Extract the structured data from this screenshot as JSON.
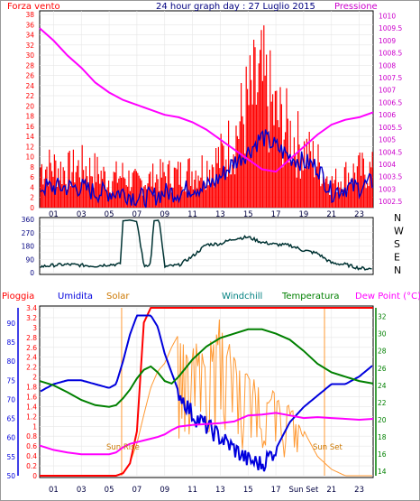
{
  "header": {
    "left_label": "Forza vento",
    "title": "24 hour graph day : 27 Luglio 2015",
    "right_label": "Pressione"
  },
  "colors": {
    "wind": "#ff0000",
    "gust": "#0000cc",
    "pressure": "#ff00ff",
    "direction": "#003333",
    "rain": "#ff0000",
    "humidity": "#0000dd",
    "solar": "#ff9933",
    "windchill": "#008080",
    "temperature": "#008000",
    "dewpoint": "#ff00ff",
    "axis_text": "#000080"
  },
  "chart_data": [
    {
      "type": "line",
      "name": "wind-pressure",
      "x_ticks": [
        "01",
        "03",
        "05",
        "07",
        "09",
        "11",
        "13",
        "15",
        "17",
        "19",
        "21",
        "23"
      ],
      "left_axis": {
        "label": "Forza vento",
        "ticks": [
          0,
          2,
          4,
          6,
          8,
          10,
          12,
          14,
          16,
          18,
          20,
          22,
          24,
          26,
          28,
          30,
          32,
          34,
          36,
          38
        ],
        "ylim": [
          0,
          38
        ]
      },
      "right_axis": {
        "label": "Pressione",
        "ticks": [
          1002.5,
          1003,
          1003.5,
          1004,
          1004.5,
          1005,
          1005.5,
          1006,
          1006.5,
          1007,
          1007.5,
          1008,
          1008.5,
          1009,
          1009.5,
          1010
        ],
        "ylim": [
          1002.25,
          1010.2
        ]
      },
      "hours": [
        0,
        1,
        2,
        3,
        4,
        5,
        6,
        7,
        8,
        9,
        10,
        11,
        12,
        13,
        14,
        15,
        16,
        17,
        18,
        19,
        20,
        21,
        22,
        23,
        24
      ],
      "wind_max": [
        10,
        10,
        9,
        10,
        9,
        7,
        8,
        6,
        7,
        8,
        8,
        9,
        10,
        12,
        17,
        25,
        30,
        22,
        18,
        14,
        11,
        6,
        8,
        9,
        9
      ],
      "wind_avg": [
        4,
        4,
        4,
        4,
        3,
        3,
        3,
        2,
        2,
        3,
        3,
        4,
        4,
        6,
        9,
        11,
        14,
        12,
        10,
        9,
        8,
        3,
        4,
        4,
        5
      ],
      "pressure": [
        1009.5,
        1009.0,
        1008.4,
        1007.9,
        1007.3,
        1006.9,
        1006.6,
        1006.4,
        1006.2,
        1006.0,
        1005.9,
        1005.7,
        1005.4,
        1005.0,
        1004.6,
        1004.2,
        1003.8,
        1003.7,
        1004.2,
        1004.7,
        1005.2,
        1005.6,
        1005.8,
        1005.9,
        1006.1
      ]
    },
    {
      "type": "line",
      "name": "wind-direction",
      "right_labels": [
        "N",
        "W",
        "S",
        "E",
        "N"
      ],
      "left_axis": {
        "ticks": [
          0,
          45,
          90,
          135,
          180,
          225,
          270,
          315,
          360
        ],
        "ylim": [
          0,
          360
        ]
      },
      "hours": [
        0,
        1,
        2,
        3,
        4,
        5,
        5.8,
        6.0,
        6.5,
        7.0,
        7.5,
        8.0,
        8.2,
        8.6,
        9.0,
        10,
        11,
        12,
        13,
        14,
        15,
        16,
        17,
        18,
        19,
        20,
        21,
        22,
        23,
        24
      ],
      "direction": [
        40,
        50,
        55,
        50,
        45,
        55,
        55,
        350,
        355,
        345,
        45,
        60,
        350,
        355,
        40,
        50,
        110,
        190,
        195,
        230,
        240,
        205,
        190,
        185,
        150,
        130,
        65,
        55,
        30,
        25
      ]
    },
    {
      "type": "line",
      "name": "rain-humidity-solar-temperature",
      "legend": [
        "Pioggia",
        "Umidita",
        "Solar",
        "Windchill",
        "Temperatura",
        "Dew Point (°C)"
      ],
      "annotations": [
        "Sun Rise",
        "Sun Set"
      ],
      "x_ticks": [
        "01",
        "03",
        "05",
        "07",
        "09",
        "11",
        "13",
        "15",
        "17",
        "Sun Set",
        "21",
        "23"
      ],
      "humidity_axis": {
        "ticks": [
          50,
          55,
          60,
          65,
          70,
          75,
          80,
          85,
          90
        ],
        "ylim": [
          50,
          94
        ]
      },
      "rain_axis": {
        "ticks": [
          0,
          0.2,
          0.4,
          0.6,
          0.8,
          1,
          1.2,
          1.4,
          1.6,
          1.8,
          2,
          2.2,
          2.4,
          2.6,
          2.8,
          3,
          3.2,
          3.4
        ],
        "ylim": [
          0,
          3.4
        ]
      },
      "temp_axis": {
        "ticks": [
          14,
          16,
          18,
          20,
          22,
          24,
          26,
          28,
          30,
          32
        ],
        "ylim": [
          13.5,
          33
        ]
      },
      "hours": [
        0,
        1,
        2,
        3,
        4,
        5,
        5.5,
        6,
        6.5,
        7,
        7.5,
        8,
        8.5,
        9,
        9.5,
        10,
        11,
        12,
        13,
        14,
        15,
        16,
        17,
        18,
        19,
        20,
        21,
        22,
        23,
        24
      ],
      "rain": [
        0,
        0,
        0,
        0,
        0,
        0,
        0,
        0.05,
        0.25,
        0.9,
        3.1,
        3.4,
        3.4,
        3.4,
        3.4,
        3.4,
        3.4,
        3.4,
        3.4,
        3.4,
        3.4,
        3.4,
        3.4,
        3.4,
        3.4,
        3.4,
        3.4,
        3.4,
        3.4,
        3.4
      ],
      "humidity": [
        72,
        74,
        75,
        75,
        74,
        73,
        74,
        80,
        87,
        92,
        92,
        92,
        89,
        82,
        77,
        72,
        66,
        63,
        60,
        57,
        54,
        53,
        57,
        64,
        68,
        71,
        74,
        74,
        76,
        79
      ],
      "solar_pct": [
        0,
        0,
        0,
        0,
        0,
        0,
        0,
        2,
        8,
        20,
        38,
        55,
        65,
        70,
        80,
        88,
        80,
        75,
        95,
        72,
        60,
        55,
        50,
        42,
        28,
        12,
        4,
        0,
        0,
        0
      ],
      "temperature": [
        24.5,
        24.0,
        23.2,
        22.3,
        21.7,
        21.5,
        21.7,
        22.5,
        23.5,
        24.8,
        25.8,
        26.2,
        25.5,
        24.5,
        24.2,
        25.0,
        27.0,
        28.5,
        29.5,
        30.0,
        30.5,
        30.5,
        30.0,
        29.3,
        28.0,
        26.5,
        25.5,
        25.0,
        24.5,
        24.2
      ],
      "dew_point": [
        17.0,
        16.5,
        16.2,
        16.0,
        16.0,
        16.0,
        16.2,
        16.8,
        17.2,
        17.4,
        17.6,
        17.8,
        18.0,
        18.3,
        18.8,
        19.2,
        19.4,
        19.5,
        19.6,
        19.8,
        20.5,
        20.6,
        20.8,
        20.5,
        20.2,
        20.3,
        20.2,
        20.1,
        20.0,
        20.1
      ]
    }
  ]
}
